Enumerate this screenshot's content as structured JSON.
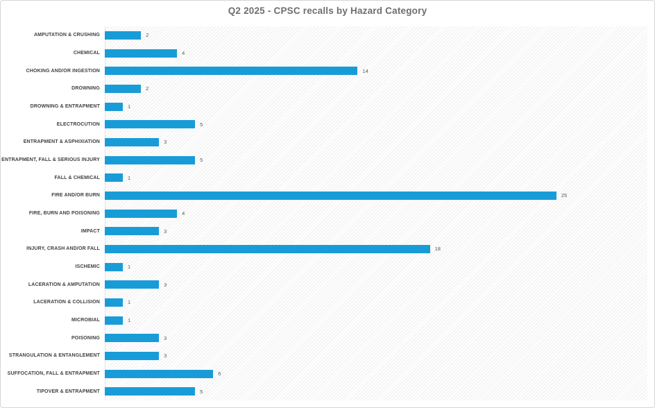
{
  "colors": {
    "bar": "#189CD8",
    "title": "#6E6E6E",
    "category": "#404040",
    "value": "#595959",
    "frame": "#D5D5D5",
    "plot_hatch_line": "#EDEDED",
    "plot_background": "#FFFFFF"
  },
  "chart_data": {
    "type": "bar",
    "orientation": "horizontal",
    "title": "Q2 2025 - CPSC recalls by Hazard Category",
    "xlabel": "",
    "ylabel": "",
    "xlim": [
      0,
      30
    ],
    "grid": false,
    "legend": false,
    "value_labels": true,
    "categories": [
      "AMPUTATION & CRUSHING",
      "CHEMICAL",
      "CHOKING AND/OR INGESTION",
      "DROWNING",
      "DROWNING & ENTRAPMENT",
      "ELECTROCUTION",
      "ENTRAPMENT & ASPHIXIATION",
      "ENTRAPMENT, FALL & SERIOUS INJURY",
      "FALL & CHEMICAL",
      "FIRE AND/OR BURN",
      "FIRE, BURN AND POISONING",
      "IMPACT",
      "INJURY, CRASH AND/OR FALL",
      "ISCHEMIC",
      "LACERATION & AMPUTATION",
      "LACERATION & COLLISION",
      "MICROBIAL",
      "POISONING",
      "STRANGULATION & ENTANGLEMENT",
      "SUFFOCATION, FALL & ENTRAPMENT",
      "TIPOVER & ENTRAPMENT"
    ],
    "values": [
      2,
      4,
      14,
      2,
      1,
      5,
      3,
      5,
      1,
      25,
      4,
      3,
      18,
      1,
      3,
      1,
      1,
      3,
      3,
      6,
      5
    ]
  }
}
